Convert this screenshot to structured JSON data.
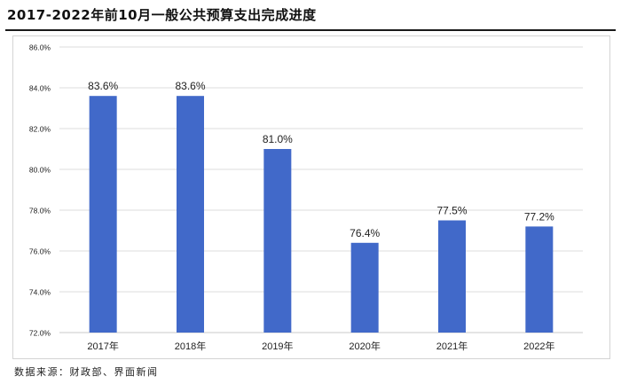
{
  "title": "2017-2022年前10月一般公共预算支出完成进度",
  "source": "数据来源：财政部、界面新闻",
  "colors": {
    "bar": "#4169c9",
    "grid": "#dcdcdc",
    "axis": "#c8c8c8",
    "text": "#222222"
  },
  "chart_data": {
    "type": "bar",
    "title": "2017-2022年前10月一般公共预算支出完成进度",
    "xlabel": "",
    "ylabel": "",
    "categories": [
      "2017年",
      "2018年",
      "2019年",
      "2020年",
      "2021年",
      "2022年"
    ],
    "values": [
      83.6,
      83.6,
      81.0,
      76.4,
      77.5,
      77.2
    ],
    "value_labels": [
      "83.6%",
      "83.6%",
      "81.0%",
      "76.4%",
      "77.5%",
      "77.2%"
    ],
    "ylim": [
      72,
      86
    ],
    "yticks": [
      72,
      74,
      76,
      78,
      80,
      82,
      84,
      86
    ],
    "ytick_labels": [
      "72.0%",
      "74.0%",
      "76.0%",
      "78.0%",
      "80.0%",
      "82.0%",
      "84.0%",
      "86.0%"
    ],
    "grid": true,
    "legend": "none"
  }
}
